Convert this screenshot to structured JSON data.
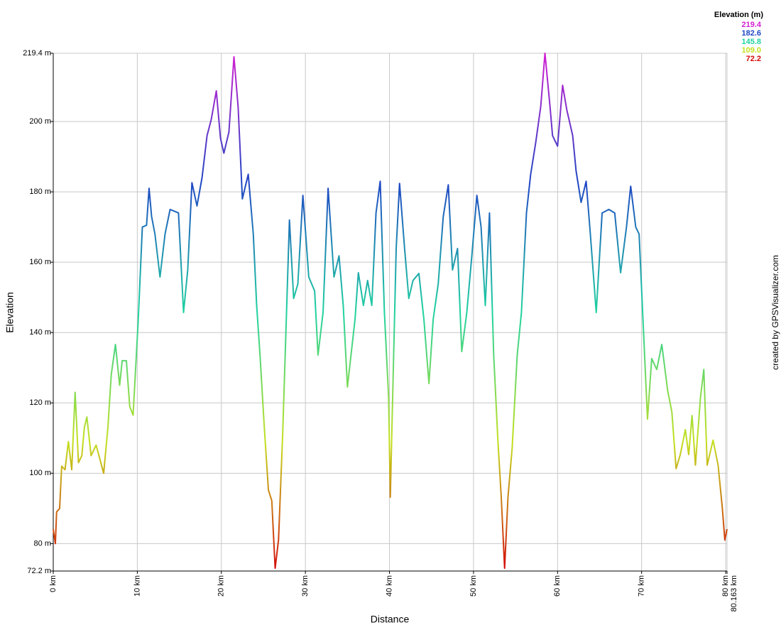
{
  "chart_data": {
    "type": "line",
    "xlabel": "Distance",
    "ylabel": "Elevation",
    "credit": "created by GPSVisualizer.com",
    "x": [
      0,
      0.25,
      0.4,
      0.76,
      1.0,
      1.4,
      1.8,
      2.2,
      2.6,
      3.0,
      3.4,
      3.7,
      4.0,
      4.5,
      5.1,
      6.0,
      6.5,
      6.9,
      7.4,
      7.9,
      8.2,
      8.7,
      9.1,
      9.5,
      10.1,
      10.6,
      11.1,
      11.4,
      11.7,
      12.1,
      12.7,
      13.3,
      13.9,
      14.9,
      15.5,
      16.0,
      16.5,
      17.1,
      17.7,
      18.3,
      18.8,
      19.4,
      19.9,
      20.3,
      20.9,
      21.5,
      22.0,
      22.5,
      23.2,
      23.8,
      24.2,
      24.6,
      25.1,
      25.6,
      26.0,
      26.4,
      26.8,
      27.3,
      27.7,
      28.1,
      28.6,
      29.1,
      29.7,
      30.4,
      31.1,
      31.5,
      32.1,
      32.7,
      33.4,
      34.0,
      34.5,
      35.0,
      35.9,
      36.3,
      36.9,
      37.4,
      37.9,
      38.4,
      38.9,
      39.4,
      39.9,
      40.1,
      40.5,
      40.8,
      41.2,
      41.8,
      42.3,
      42.8,
      43.5,
      44.1,
      44.7,
      45.2,
      45.8,
      46.4,
      47.0,
      47.5,
      48.1,
      48.6,
      49.2,
      49.8,
      50.4,
      50.9,
      51.4,
      51.9,
      52.4,
      52.9,
      53.3,
      53.7,
      54.1,
      54.6,
      55.2,
      55.7,
      56.3,
      56.8,
      57.4,
      58.0,
      58.5,
      59.1,
      59.4,
      60.0,
      60.6,
      61.1,
      61.8,
      62.2,
      62.8,
      63.4,
      63.9,
      64.6,
      65.3,
      66.1,
      66.8,
      67.5,
      68.2,
      68.7,
      69.3,
      69.7,
      70.2,
      70.7,
      71.2,
      71.8,
      72.4,
      73.1,
      73.6,
      74.1,
      74.6,
      75.2,
      75.6,
      76.0,
      76.4,
      77.0,
      77.4,
      77.8,
      78.5,
      79.1,
      79.6,
      79.9,
      80.163
    ],
    "series": [
      {
        "name": "Elevation",
        "values": [
          84.1,
          80,
          89,
          90,
          102,
          101,
          109,
          101,
          123,
          103,
          105,
          113,
          116,
          105,
          108,
          100,
          113,
          128,
          136.6,
          125,
          132,
          132,
          119,
          116.5,
          143,
          170,
          170.5,
          181,
          173,
          168,
          155.8,
          168,
          175,
          174,
          145.7,
          157.8,
          182.6,
          176,
          184,
          196,
          200.6,
          208.7,
          195.2,
          191,
          197,
          218.4,
          204,
          178,
          185,
          168,
          147.7,
          133.6,
          113.4,
          95.2,
          92.2,
          73,
          81,
          111.4,
          141.7,
          172,
          149.7,
          153.8,
          179,
          155.8,
          151.8,
          133.6,
          145.7,
          181,
          155.8,
          161.8,
          147.7,
          124.5,
          143.7,
          157,
          147.7,
          154.8,
          147.7,
          174,
          183,
          145.7,
          121.5,
          93.2,
          133.6,
          163.9,
          182.4,
          163.9,
          149.7,
          154.8,
          156.8,
          143.7,
          125.5,
          143.7,
          153.8,
          173,
          182,
          157.8,
          163.9,
          134.6,
          145.7,
          161.8,
          179,
          170,
          147.7,
          174,
          133.6,
          109.4,
          93.2,
          73,
          93.2,
          107.3,
          133.6,
          145.7,
          174,
          185,
          194,
          204.3,
          219.4,
          204.3,
          196,
          193,
          210.3,
          203.3,
          196,
          186,
          177,
          183,
          168,
          145.7,
          174,
          175,
          174,
          157,
          170,
          181.6,
          170,
          168,
          141.7,
          115.4,
          132.6,
          129.5,
          136.6,
          123.5,
          117.4,
          101.3,
          105.3,
          112.4,
          105.3,
          116.4,
          102.3,
          121.5,
          129.5,
          102.3,
          109.4,
          102.3,
          90.2,
          81,
          84.1
        ]
      }
    ],
    "xlim": [
      0,
      80.163
    ],
    "xticks": [
      {
        "value": 0,
        "label": "0 km"
      },
      {
        "value": 10,
        "label": "10 km"
      },
      {
        "value": 20,
        "label": "20 km"
      },
      {
        "value": 30,
        "label": "30 km"
      },
      {
        "value": 40,
        "label": "40 km"
      },
      {
        "value": 50,
        "label": "50 km"
      },
      {
        "value": 60,
        "label": "60 km"
      },
      {
        "value": 70,
        "label": "70 km"
      },
      {
        "value": 80,
        "label": "80 km"
      },
      {
        "value": 80.163,
        "label": "80.163 km"
      }
    ],
    "ylim": [
      72.2,
      219.4
    ],
    "yticks": [
      {
        "value": 72.2,
        "label": "72.2 m"
      },
      {
        "value": 80,
        "label": "80 m"
      },
      {
        "value": 100,
        "label": "100 m"
      },
      {
        "value": 120,
        "label": "120 m"
      },
      {
        "value": 140,
        "label": "140 m"
      },
      {
        "value": 160,
        "label": "160 m"
      },
      {
        "value": 180,
        "label": "180 m"
      },
      {
        "value": 200,
        "label": "200 m"
      },
      {
        "value": 219.4,
        "label": "219.4 m"
      }
    ],
    "grid": true,
    "color_scale": {
      "title": "Elevation (m)",
      "stops": [
        219.4,
        182.6,
        145.8,
        {
          "value": 109,
          "label": "109.0"
        },
        72.2
      ],
      "colors": [
        "#d21fd2",
        "#1f47c4",
        "#1fd2a0",
        "#c4e01f",
        "#d40a0a"
      ]
    }
  }
}
